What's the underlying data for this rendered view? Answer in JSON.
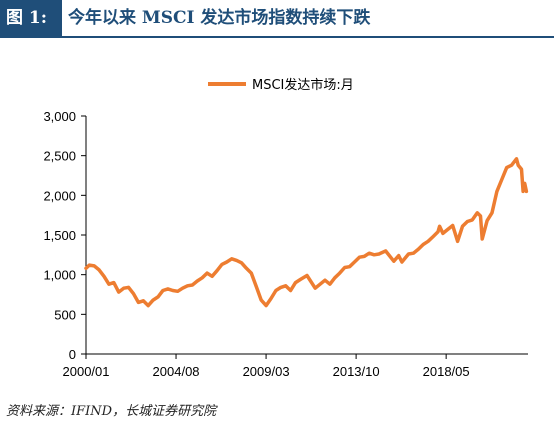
{
  "figure": {
    "label": "图 1:",
    "title": "今年以来 MSCI 发达市场指数持续下跌",
    "source": "资料来源：IFIND，长城证券研究院"
  },
  "colors": {
    "accent": "#1f4e79",
    "series": "#ed7d31",
    "axis": "#000000"
  },
  "chart_data": {
    "type": "line",
    "title": "",
    "xlabel": "",
    "ylabel": "",
    "legend_position": "top-center",
    "grid": false,
    "ylim": [
      0,
      3000
    ],
    "yticks": [
      "0",
      "500",
      "1,000",
      "1,500",
      "2,000",
      "2,500",
      "3,000"
    ],
    "xlim": [
      "2000-01",
      "2022-07"
    ],
    "xticks": [
      "2000/01",
      "2004/08",
      "2009/03",
      "2013/10",
      "2018/05"
    ],
    "series": [
      {
        "name": "MSCI发达市场:月",
        "x": [
          "2000-01",
          "2000-03",
          "2000-06",
          "2000-09",
          "2000-12",
          "2001-03",
          "2001-06",
          "2001-09",
          "2001-12",
          "2002-03",
          "2002-06",
          "2002-09",
          "2002-12",
          "2003-03",
          "2003-06",
          "2003-09",
          "2003-12",
          "2004-03",
          "2004-06",
          "2004-09",
          "2004-12",
          "2005-03",
          "2005-06",
          "2005-09",
          "2005-12",
          "2006-03",
          "2006-06",
          "2006-09",
          "2006-12",
          "2007-03",
          "2007-06",
          "2007-09",
          "2007-12",
          "2008-03",
          "2008-06",
          "2008-09",
          "2008-12",
          "2009-03",
          "2009-06",
          "2009-09",
          "2009-12",
          "2010-03",
          "2010-06",
          "2010-09",
          "2010-12",
          "2011-04",
          "2011-09",
          "2011-12",
          "2012-03",
          "2012-06",
          "2012-09",
          "2012-12",
          "2013-03",
          "2013-06",
          "2013-09",
          "2013-12",
          "2014-03",
          "2014-06",
          "2014-09",
          "2014-12",
          "2015-04",
          "2015-09",
          "2015-12",
          "2016-02",
          "2016-06",
          "2016-09",
          "2016-12",
          "2017-03",
          "2017-06",
          "2017-09",
          "2017-12",
          "2018-01",
          "2018-03",
          "2018-06",
          "2018-09",
          "2018-12",
          "2019-03",
          "2019-06",
          "2019-09",
          "2019-12",
          "2020-02",
          "2020-03",
          "2020-06",
          "2020-09",
          "2020-12",
          "2021-03",
          "2021-06",
          "2021-09",
          "2021-12",
          "2022-01",
          "2022-03",
          "2022-04",
          "2022-05",
          "2022-06"
        ],
        "values": [
          1080,
          1120,
          1110,
          1060,
          980,
          880,
          900,
          780,
          830,
          840,
          760,
          650,
          670,
          610,
          680,
          720,
          800,
          820,
          800,
          790,
          830,
          860,
          870,
          920,
          960,
          1020,
          980,
          1050,
          1130,
          1160,
          1200,
          1180,
          1150,
          1080,
          1020,
          850,
          680,
          610,
          700,
          800,
          840,
          860,
          800,
          900,
          940,
          990,
          830,
          880,
          930,
          880,
          960,
          1020,
          1090,
          1100,
          1160,
          1220,
          1230,
          1270,
          1250,
          1260,
          1300,
          1170,
          1240,
          1160,
          1260,
          1270,
          1320,
          1380,
          1420,
          1480,
          1540,
          1610,
          1520,
          1570,
          1620,
          1420,
          1610,
          1670,
          1690,
          1780,
          1740,
          1450,
          1680,
          1780,
          2050,
          2200,
          2350,
          2380,
          2460,
          2380,
          2330,
          2050,
          2150,
          2050
        ]
      }
    ]
  }
}
